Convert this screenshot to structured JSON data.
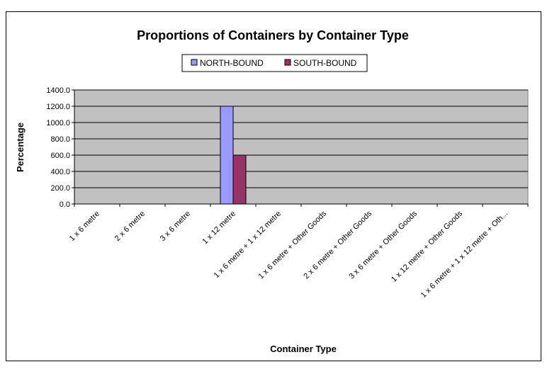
{
  "chart_data": {
    "type": "bar",
    "title": "Proportions of Containers by Container Type",
    "xlabel": "Container Type",
    "ylabel": "Percentage",
    "ylim": [
      0,
      1400
    ],
    "ytick_step": 200,
    "ytick_labels": [
      "0.0",
      "200.0",
      "400.0",
      "600.0",
      "800.0",
      "1000.0",
      "1200.0",
      "1400.0"
    ],
    "grid": true,
    "legend_position": "top-center",
    "categories": [
      "1 x 6 metre",
      "2 x 6 metre",
      "3 x 6 metre",
      "1 x 12 metre",
      "1 x 6 metre + 1 x 12 metre",
      "1 x 6 metre + Other Goods",
      "2 x 6 metre + Other Goods",
      "3 x 6 metre + Other Goods",
      "1 x 12 metre + Other Goods",
      "1 x 6 metre + 1 x 12 metre + Oth..."
    ],
    "series": [
      {
        "name": "NORTH-BOUND",
        "color": "#9999ff",
        "values": [
          0,
          0,
          0,
          1200,
          0,
          0,
          0,
          0,
          0,
          0
        ]
      },
      {
        "name": "SOUTH-BOUND",
        "color": "#993366",
        "values": [
          0,
          0,
          0,
          600,
          0,
          0,
          0,
          0,
          0,
          0
        ]
      }
    ],
    "plot_background": "#c0c0c0",
    "gridline_color": "#000000"
  }
}
